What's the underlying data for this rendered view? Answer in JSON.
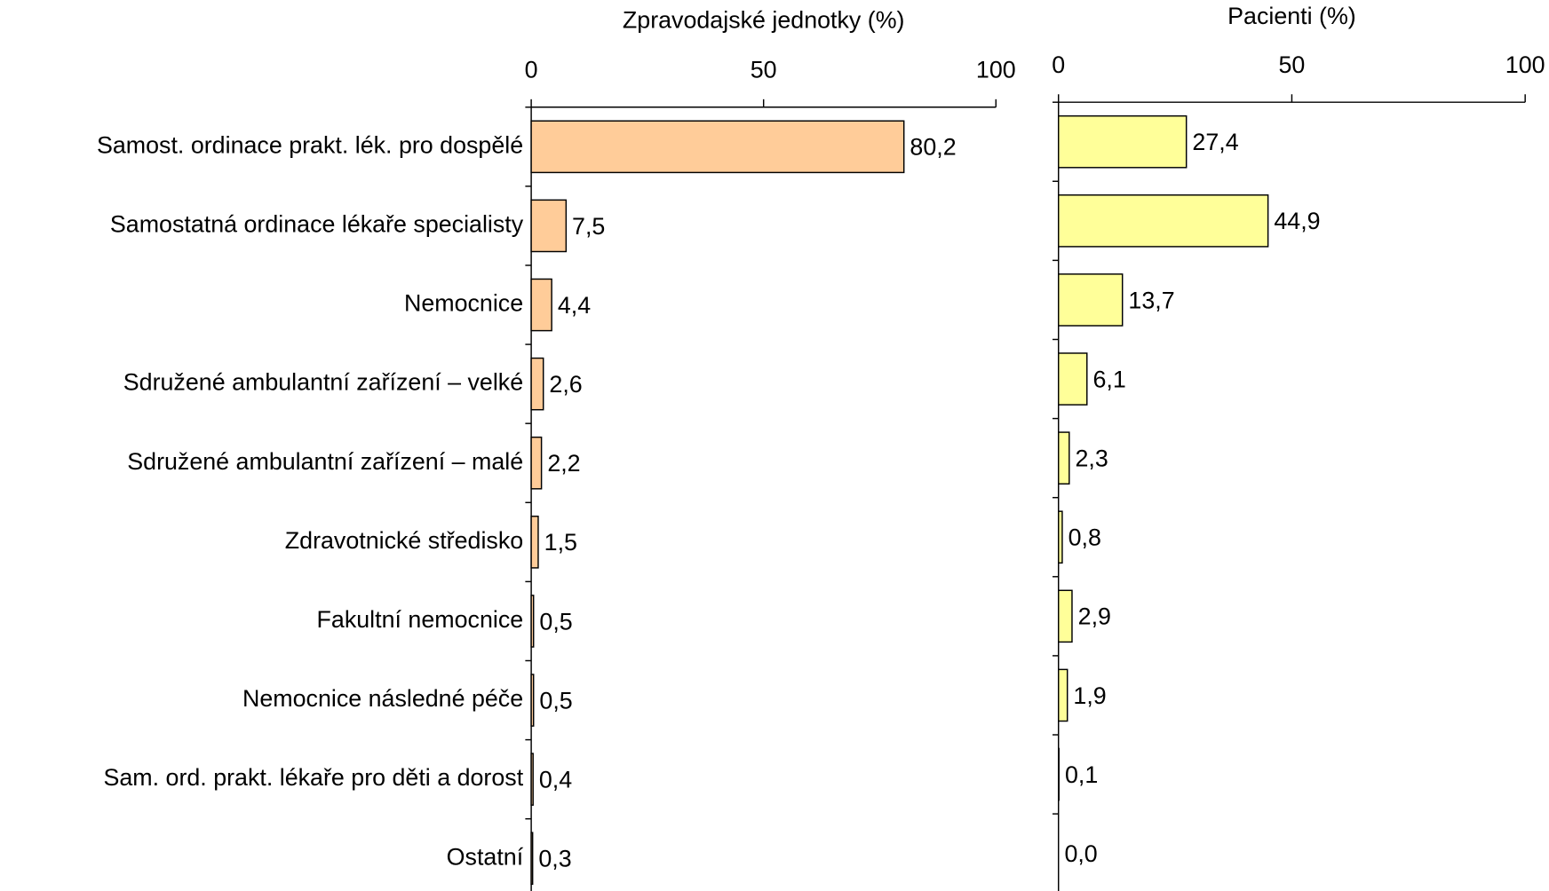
{
  "chart_data": [
    {
      "type": "bar",
      "orientation": "horizontal",
      "title": "Zpravodajské jednotky (%)",
      "categories": [
        "Samost. ordinace prakt. lék. pro dospělé",
        "Samostatná ordinace lékaře specialisty",
        "Nemocnice",
        "Sdružené ambulantní zařízení – velké",
        "Sdružené ambulantní zařízení – malé",
        "Zdravotnické středisko",
        "Fakultní nemocnice",
        "Nemocnice následné péče",
        "Sam. ord. prakt. lékaře pro děti a dorost",
        "Ostatní"
      ],
      "values": [
        80.2,
        7.5,
        4.4,
        2.6,
        2.2,
        1.5,
        0.5,
        0.5,
        0.4,
        0.3
      ],
      "value_labels": [
        "80,2",
        "7,5",
        "4,4",
        "2,6",
        "2,2",
        "1,5",
        "0,5",
        "0,5",
        "0,4",
        "0,3"
      ],
      "color": "#ffcc99",
      "xlim": [
        0,
        100
      ],
      "xticks": [
        0,
        50,
        100
      ]
    },
    {
      "type": "bar",
      "orientation": "horizontal",
      "title": "Pacienti (%)",
      "values": [
        27.4,
        44.9,
        13.7,
        6.1,
        2.3,
        0.8,
        2.9,
        1.9,
        0.1,
        0.0
      ],
      "value_labels": [
        "27,4",
        "44,9",
        "13,7",
        "6,1",
        "2,3",
        "0,8",
        "2,9",
        "1,9",
        "0,1",
        "0,0"
      ],
      "color": "#ffff99",
      "xlim": [
        0,
        100
      ],
      "xticks": [
        0,
        50,
        100
      ]
    }
  ]
}
